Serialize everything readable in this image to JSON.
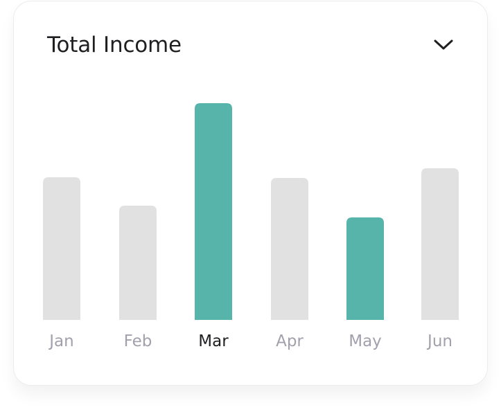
{
  "header": {
    "title": "Total Income",
    "dropdown_icon": "chevron-down-icon"
  },
  "colors": {
    "highlight": "#57b4ab",
    "muted": "#e1e1e1",
    "label_muted": "#a2a0ac",
    "label_active": "#1f1f22"
  },
  "chart_data": {
    "type": "bar",
    "title": "Total Income",
    "categories": [
      "Jan",
      "Feb",
      "Mar",
      "Apr",
      "May",
      "Jun"
    ],
    "values": [
      206,
      165,
      313,
      205,
      148,
      219
    ],
    "highlighted": [
      false,
      false,
      true,
      false,
      true,
      false
    ],
    "active_label": "Mar",
    "ylim": [
      0,
      313
    ],
    "grid": false,
    "legend": "none"
  }
}
